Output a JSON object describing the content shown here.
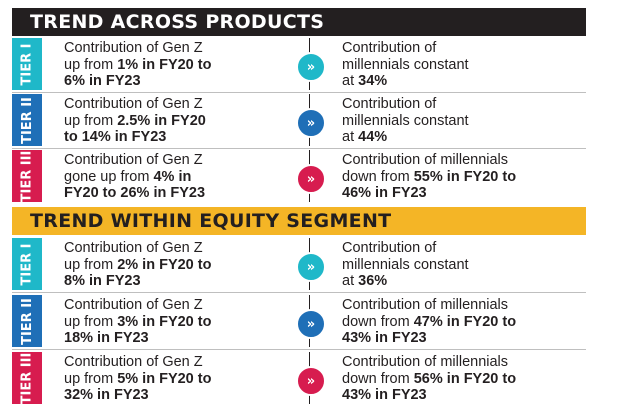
{
  "sections": [
    {
      "title": "TREND ACROSS PRODUCTS",
      "rows": [
        {
          "tier": "TIER I",
          "left": [
            "Contribution of Gen Z",
            "up from ",
            "1% in FY20 to",
            "6% in FY23"
          ],
          "right": [
            "Contribution of",
            "millennials constant",
            "at ",
            "34%"
          ],
          "color": "#1fb8c9"
        },
        {
          "tier": "TIER II",
          "left": [
            "Contribution of Gen Z",
            "up from ",
            "2.5% in FY20",
            "to 14% in FY23"
          ],
          "right": [
            "Contribution of",
            "millennials constant",
            "at ",
            "44%"
          ],
          "color": "#1f6fb7"
        },
        {
          "tier": "TIER III",
          "left": [
            "Contribution of Gen Z",
            "gone up from ",
            "4% in",
            "FY20 to 26% in FY23"
          ],
          "right": [
            "Contribution of millennials",
            "down from ",
            "55% in FY20 to",
            "46% in FY23"
          ],
          "color": "#d71c4f"
        }
      ]
    },
    {
      "title": "TREND WITHIN EQUITY SEGMENT",
      "rows": [
        {
          "tier": "TIER I",
          "left": [
            "Contribution of Gen Z",
            "up from ",
            "2% in FY20 to",
            "8% in FY23"
          ],
          "right": [
            "Contribution of",
            "millennials constant",
            "at ",
            "36%"
          ],
          "color": "#1fb8c9"
        },
        {
          "tier": "TIER II",
          "left": [
            "Contribution of Gen Z",
            "up from ",
            "3% in FY20 to",
            "18% in FY23"
          ],
          "right": [
            "Contribution of millennials",
            "down from ",
            "47% in FY20 to",
            "43% in FY23"
          ],
          "color": "#1f6fb7"
        },
        {
          "tier": "TIER III",
          "left": [
            "Contribution of Gen Z",
            "up from ",
            "5% in FY20 to",
            "32% in FY23"
          ],
          "right": [
            "Contribution of millennials",
            "down from ",
            "56% in FY20 to",
            "43% in FY23"
          ],
          "color": "#d71c4f"
        }
      ]
    }
  ],
  "badge_glyph": "»",
  "icons": {
    "badge": "double-chevron-right-icon"
  }
}
